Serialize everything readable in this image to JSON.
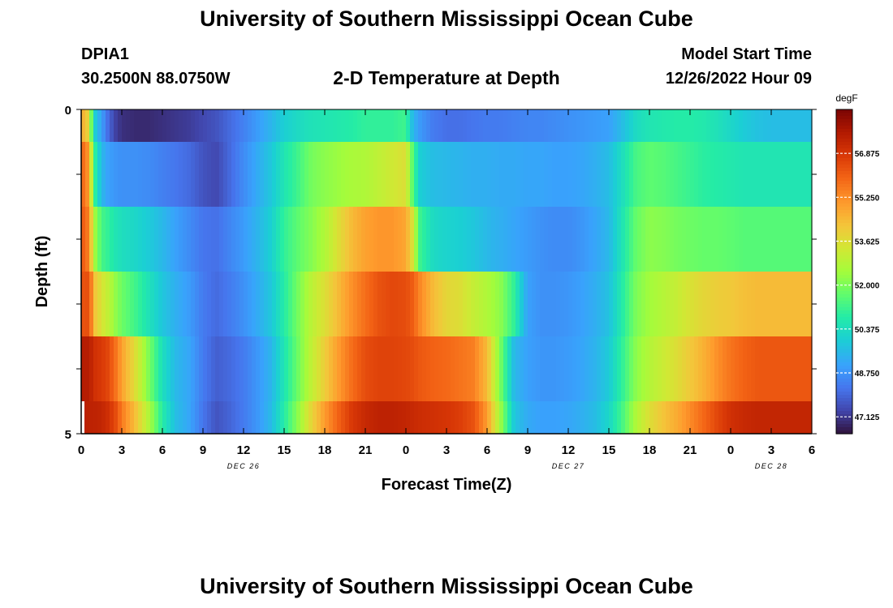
{
  "header": {
    "title": "University of Southern Mississippi Ocean Cube",
    "station": "DPIA1",
    "coordinates": "30.2500N  88.0750W",
    "subtitle": "2-D Temperature at Depth",
    "model_start_label": "Model Start Time",
    "model_start_value": "12/26/2022 Hour 09",
    "footer_title": "University of Southern Mississippi Ocean Cube"
  },
  "chart_data": {
    "type": "heatmap",
    "title": "2-D Temperature at Depth",
    "xlabel": "Forecast Time(Z)",
    "ylabel": "Depth (ft)",
    "x_range_hours": [
      0,
      54
    ],
    "y_range": [
      0,
      5
    ],
    "x_tick_labels": [
      "0",
      "3",
      "6",
      "9",
      "12",
      "15",
      "18",
      "21",
      "0",
      "3",
      "6",
      "9",
      "12",
      "15",
      "18",
      "21",
      "0",
      "3",
      "6"
    ],
    "y_tick_labels": [
      "0",
      "5"
    ],
    "date_labels": [
      {
        "text": "DEC 26",
        "hour": 12
      },
      {
        "text": "DEC 27",
        "hour": 36
      },
      {
        "text": "DEC 28",
        "hour": 51
      }
    ],
    "colorbar": {
      "unit": "degF",
      "min": 46.5,
      "max": 58.5,
      "ticks": [
        "47.125",
        "48.750",
        "50.375",
        "52.000",
        "53.625",
        "55.250",
        "56.875"
      ]
    },
    "keyframe_hours": [
      0,
      0.3,
      0.6,
      1,
      1.5,
      2,
      2.5,
      3,
      4,
      5,
      6,
      7,
      8,
      9,
      10,
      11,
      12,
      13,
      14,
      15,
      16,
      17,
      18,
      19,
      20,
      21,
      22,
      23,
      24,
      24.5,
      25,
      26,
      27,
      28,
      29,
      30,
      31,
      32,
      33,
      34,
      35,
      36,
      37,
      38,
      39,
      40,
      41,
      42,
      43,
      44,
      45,
      46,
      47,
      48,
      49,
      50,
      51,
      52,
      53,
      54
    ],
    "layers": [
      {
        "depth": "0.0-0.5",
        "values": [
          54,
          55,
          53,
          50,
          49,
          48,
          47.3,
          47,
          46.9,
          46.9,
          47,
          47.1,
          47.2,
          47.4,
          47.6,
          48,
          48.4,
          48.9,
          49.4,
          50,
          50.3,
          50.5,
          50.6,
          50.7,
          50.8,
          51,
          51,
          51,
          51.2,
          49.5,
          48.9,
          48.3,
          48.1,
          48.1,
          48.2,
          48.3,
          48.3,
          48.4,
          48.5,
          48.5,
          48.6,
          48.7,
          48.8,
          48.9,
          49,
          49.6,
          50.3,
          50.6,
          50.7,
          50.8,
          50.8,
          50.7,
          50.5,
          50.2,
          49.9,
          49.7,
          49.6,
          49.6,
          49.6,
          49.6
        ]
      },
      {
        "depth": "0.5-1.5",
        "values": [
          55.6,
          56,
          54.5,
          51,
          49.5,
          49,
          48.8,
          48.7,
          48.7,
          48.6,
          48.4,
          48.2,
          48,
          47.6,
          47.4,
          48,
          48.6,
          49.2,
          49.8,
          50.6,
          51.2,
          51.9,
          52.2,
          52.4,
          52.6,
          52.7,
          53,
          53.3,
          53.6,
          51.5,
          50,
          49.6,
          49.5,
          49.4,
          49.3,
          49.3,
          49.2,
          49.2,
          49.1,
          49.1,
          49,
          49,
          49.1,
          49.3,
          49.6,
          50.4,
          51.3,
          51.6,
          51.5,
          51.3,
          51.1,
          50.9,
          50.8,
          50.7,
          50.6,
          50.6,
          50.6,
          50.6,
          50.6,
          50.6
        ]
      },
      {
        "depth": "1.5-2.5",
        "values": [
          55.8,
          56.3,
          55,
          52.5,
          51.3,
          51,
          50.6,
          50.4,
          50.2,
          49.9,
          49.5,
          49,
          48.6,
          48.2,
          48.1,
          48.5,
          48.9,
          49.4,
          50,
          51,
          51.6,
          52.1,
          52.7,
          53.6,
          54.4,
          54.9,
          55.1,
          55.1,
          54.8,
          53.5,
          51.2,
          50.3,
          50.1,
          50,
          49.8,
          49.5,
          49.3,
          49.1,
          48.9,
          48.7,
          48.6,
          48.6,
          48.8,
          49.1,
          49.5,
          50.6,
          51.7,
          52.2,
          52.1,
          51.9,
          51.8,
          51.7,
          51.7,
          51.6,
          51.5,
          51.5,
          51.5,
          51.5,
          51.5,
          51.5
        ]
      },
      {
        "depth": "2.5-3.5",
        "values": [
          56.2,
          56.4,
          56.3,
          54.2,
          53.5,
          53,
          52.3,
          51.8,
          51.2,
          50.5,
          49.8,
          49.3,
          48.9,
          48.3,
          48,
          48.3,
          48.7,
          49.2,
          49.8,
          50.8,
          51.9,
          52.9,
          53.6,
          54.4,
          55.2,
          55.8,
          56.3,
          56.5,
          56.4,
          56.1,
          55.4,
          54.4,
          53.8,
          53.6,
          53.1,
          52.7,
          52.2,
          51,
          49,
          48.7,
          48.7,
          48.8,
          49,
          49.3,
          49.7,
          50.8,
          52,
          52.5,
          52.8,
          53.1,
          53.5,
          53.8,
          54,
          54.1,
          54.3,
          54.4,
          54.4,
          54.4,
          54.4,
          54.4
        ]
      },
      {
        "depth": "3.5-4.5",
        "values": [
          57.5,
          57.6,
          57.5,
          57,
          56.8,
          56.5,
          55.8,
          54.9,
          53.6,
          52,
          50.4,
          49.5,
          49.1,
          48.3,
          47.8,
          48,
          48.3,
          48.8,
          49.4,
          50.6,
          51.8,
          53,
          54,
          55,
          55.8,
          56.4,
          56.6,
          56.6,
          56.5,
          56.4,
          56.2,
          56,
          55.9,
          55.7,
          55.5,
          54.4,
          51.9,
          49.5,
          49,
          48.8,
          48.8,
          48.9,
          49.1,
          49.4,
          49.9,
          51,
          52.2,
          52.8,
          53.2,
          53.6,
          54.1,
          54.6,
          55.2,
          55.7,
          56,
          56.2,
          56.2,
          56.2,
          56.2,
          56.2
        ]
      },
      {
        "depth": "4.5-5.0",
        "values": [
          57.4,
          57.5,
          57.4,
          57.4,
          57.3,
          57,
          56.5,
          55.6,
          54.3,
          52.7,
          50.8,
          49.6,
          49.1,
          48.2,
          47.6,
          47.9,
          48.3,
          48.8,
          49.5,
          50.8,
          52.2,
          53.8,
          55,
          56,
          56.8,
          57.2,
          57.4,
          57.4,
          57.3,
          57.2,
          57.1,
          57,
          56.9,
          56.7,
          56.3,
          55,
          52.4,
          49.8,
          49.2,
          49,
          49,
          49.1,
          49.3,
          49.6,
          50.2,
          51.3,
          52.7,
          53.6,
          54.2,
          54.7,
          55.3,
          55.9,
          56.5,
          57,
          57.2,
          57.3,
          57.3,
          57.3,
          57.3,
          57.3
        ]
      }
    ]
  }
}
